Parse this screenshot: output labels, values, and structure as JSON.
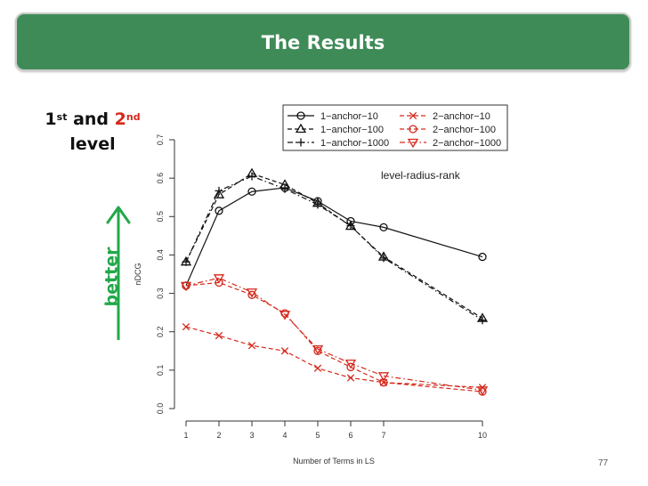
{
  "slide": {
    "title": "The Results",
    "level_heading": {
      "first": "1",
      "first_sup": "st",
      "and": " and ",
      "second": "2",
      "second_sup": "nd",
      "level": "level"
    },
    "better_label": "better",
    "annotation": "level-radius-rank",
    "slide_number": "77",
    "colors": {
      "banner": "#3f8b57",
      "arrow": "#22a84a",
      "red_series": "#d4291c",
      "black_series": "#111111"
    }
  },
  "chart_data": {
    "type": "line",
    "title": "",
    "xlabel": "Number of Terms in LS",
    "ylabel": "nDCG",
    "x_ticks": [
      1,
      2,
      3,
      4,
      5,
      6,
      7,
      10
    ],
    "y_ticks": [
      "0.0",
      "0.1",
      "0.2",
      "0.3",
      "0.4",
      "0.5",
      "0.6",
      "0.7"
    ],
    "ylim": [
      0,
      0.7
    ],
    "legend_position": "top-right",
    "series": [
      {
        "name": "1−anchor−10",
        "color": "#111111",
        "marker": "circle",
        "dash": "solid",
        "x": [
          1,
          2,
          3,
          4,
          5,
          6,
          7,
          10
        ],
        "y": [
          0.32,
          0.515,
          0.565,
          0.575,
          0.54,
          0.488,
          0.472,
          0.395
        ]
      },
      {
        "name": "1−anchor−100",
        "color": "#111111",
        "marker": "triangle-up",
        "dash": "dashed",
        "x": [
          1,
          2,
          3,
          4,
          5,
          6,
          7,
          10
        ],
        "y": [
          0.382,
          0.557,
          0.612,
          0.583,
          0.535,
          0.475,
          0.395,
          0.235
        ]
      },
      {
        "name": "1−anchor−1000",
        "color": "#111111",
        "marker": "plus",
        "dash": "dotdash",
        "x": [
          1,
          2,
          3,
          4,
          5,
          6,
          7,
          10
        ],
        "y": [
          0.382,
          0.567,
          0.605,
          0.572,
          0.531,
          0.476,
          0.392,
          0.23
        ]
      },
      {
        "name": "2−anchor−10",
        "color": "#d4291c",
        "marker": "x",
        "dash": "dashed",
        "x": [
          1,
          2,
          3,
          4,
          5,
          6,
          7,
          10
        ],
        "y": [
          0.213,
          0.19,
          0.164,
          0.15,
          0.105,
          0.08,
          0.068,
          0.055
        ]
      },
      {
        "name": "2−anchor−100",
        "color": "#d4291c",
        "marker": "circle",
        "dash": "dashed",
        "x": [
          1,
          2,
          3,
          4,
          5,
          6,
          7,
          10
        ],
        "y": [
          0.32,
          0.328,
          0.296,
          0.248,
          0.15,
          0.108,
          0.068,
          0.044
        ]
      },
      {
        "name": "2−anchor−1000",
        "color": "#d4291c",
        "marker": "triangle-down",
        "dash": "dotdash",
        "x": [
          1,
          2,
          3,
          4,
          5,
          6,
          7,
          10
        ],
        "y": [
          0.32,
          0.34,
          0.303,
          0.245,
          0.155,
          0.118,
          0.085,
          0.048
        ]
      }
    ]
  }
}
